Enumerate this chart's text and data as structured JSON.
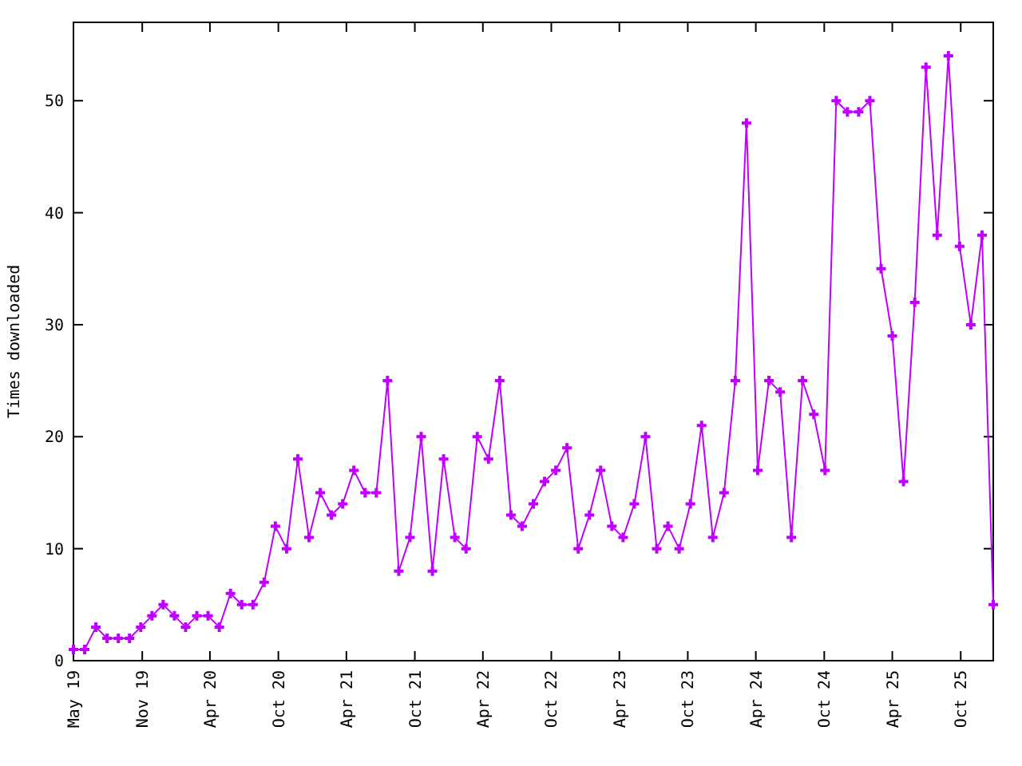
{
  "chart_data": {
    "type": "line",
    "ylabel": "Times downloaded",
    "marker": "cross",
    "line_style": "solid",
    "grid": false,
    "xlim": [
      "2019-05-01",
      "2026-01-24"
    ],
    "ylim": [
      0,
      57
    ],
    "yticks": [
      0,
      10,
      20,
      30,
      40,
      50
    ],
    "xticks": [
      {
        "value": "2019-05-01",
        "label": "May 19"
      },
      {
        "value": "2019-11-01",
        "label": "Nov 19"
      },
      {
        "value": "2020-04-30",
        "label": "Apr 20"
      },
      {
        "value": "2020-10-30",
        "label": "Oct 20"
      },
      {
        "value": "2021-04-30",
        "label": "Apr 21"
      },
      {
        "value": "2021-10-30",
        "label": "Oct 21"
      },
      {
        "value": "2022-04-30",
        "label": "Apr 22"
      },
      {
        "value": "2022-10-30",
        "label": "Oct 22"
      },
      {
        "value": "2023-04-30",
        "label": "Apr 23"
      },
      {
        "value": "2023-10-30",
        "label": "Oct 23"
      },
      {
        "value": "2024-04-29",
        "label": "Apr 24"
      },
      {
        "value": "2024-10-29",
        "label": "Oct 24"
      },
      {
        "value": "2025-04-29",
        "label": "Apr 25"
      },
      {
        "value": "2025-10-29",
        "label": "Oct 25"
      }
    ],
    "x": [
      "2019-05-01",
      "2019-05-31",
      "2019-06-30",
      "2019-07-30",
      "2019-08-29",
      "2019-09-28",
      "2019-10-28",
      "2019-11-27",
      "2019-12-27",
      "2020-01-26",
      "2020-02-25",
      "2020-03-26",
      "2020-04-25",
      "2020-05-25",
      "2020-06-24",
      "2020-07-24",
      "2020-08-23",
      "2020-09-22",
      "2020-10-22",
      "2020-11-21",
      "2020-12-21",
      "2021-01-20",
      "2021-02-19",
      "2021-03-21",
      "2021-04-20",
      "2021-05-20",
      "2021-06-19",
      "2021-07-19",
      "2021-08-18",
      "2021-09-17",
      "2021-10-17",
      "2021-11-16",
      "2021-12-16",
      "2022-01-15",
      "2022-02-14",
      "2022-03-16",
      "2022-04-15",
      "2022-05-15",
      "2022-06-14",
      "2022-07-14",
      "2022-08-13",
      "2022-09-12",
      "2022-10-12",
      "2022-11-11",
      "2022-12-11",
      "2023-01-10",
      "2023-02-09",
      "2023-03-11",
      "2023-04-10",
      "2023-05-10",
      "2023-06-09",
      "2023-07-09",
      "2023-08-08",
      "2023-09-07",
      "2023-10-07",
      "2023-11-06",
      "2023-12-06",
      "2024-01-05",
      "2024-02-04",
      "2024-03-05",
      "2024-04-04",
      "2024-05-04",
      "2024-06-03",
      "2024-07-03",
      "2024-08-02",
      "2024-09-01",
      "2024-10-01",
      "2024-10-31",
      "2024-11-30",
      "2024-12-30",
      "2025-01-29",
      "2025-02-28",
      "2025-03-30",
      "2025-04-29",
      "2025-05-29",
      "2025-06-28",
      "2025-07-28",
      "2025-08-27",
      "2025-09-26",
      "2025-10-26",
      "2025-11-25",
      "2025-12-25",
      "2026-01-24"
    ],
    "series": [
      {
        "color": "#c000ff",
        "values": [
          1,
          1,
          3,
          2,
          2,
          2,
          3,
          4,
          5,
          4,
          3,
          4,
          4,
          3,
          6,
          5,
          5,
          7,
          12,
          10,
          18,
          11,
          15,
          13,
          14,
          17,
          15,
          15,
          25,
          8,
          11,
          20,
          8,
          18,
          11,
          10,
          20,
          18,
          25,
          13,
          12,
          14,
          16,
          17,
          19,
          10,
          13,
          17,
          12,
          11,
          14,
          20,
          10,
          12,
          10,
          14,
          21,
          11,
          15,
          25,
          48,
          17,
          25,
          24,
          11,
          25,
          22,
          17,
          50,
          49,
          49,
          50,
          35,
          29,
          16,
          32,
          53,
          38,
          54,
          37,
          30,
          38,
          5
        ]
      }
    ]
  }
}
